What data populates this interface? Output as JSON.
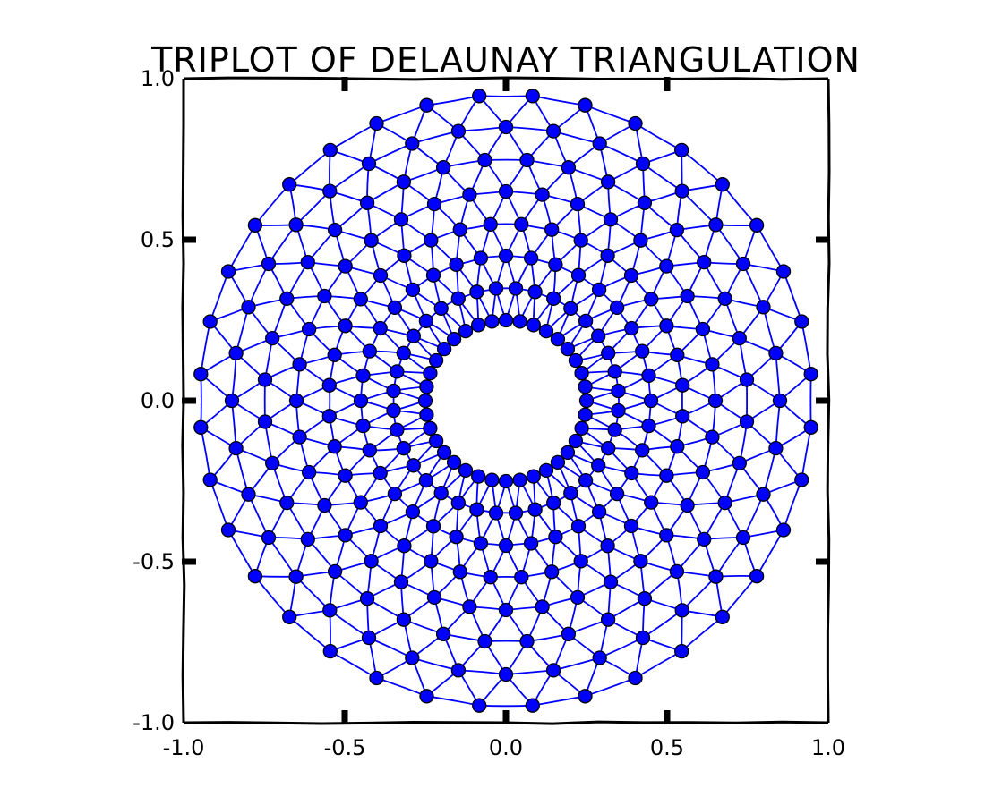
{
  "chart_data": {
    "type": "scatter",
    "style": "xkcd",
    "title": "TRIPLOT OF DELAUNAY TRIANGULATION",
    "xlabel": "",
    "ylabel": "",
    "xlim": [
      -1.0,
      1.0
    ],
    "ylim": [
      -1.0,
      1.0
    ],
    "x_ticks": [
      "-1.0",
      "-0.5",
      "0.0",
      "0.5",
      "1.0"
    ],
    "y_ticks": [
      "-1.0",
      "-0.5",
      "0.0",
      "0.5",
      "1.0"
    ],
    "grid": false,
    "marker_color": "#0000ff",
    "edge_color": "#0000ff",
    "marker_edge_color": "#000000",
    "triangulation": {
      "min_radius": 0.25,
      "n_radii": 8,
      "n_angles": 36,
      "points": "polar grid: radii 0.25 to 0.95 in 8 equal steps, 36 angles per ring, alternate rings rotated by half an angle step"
    }
  }
}
